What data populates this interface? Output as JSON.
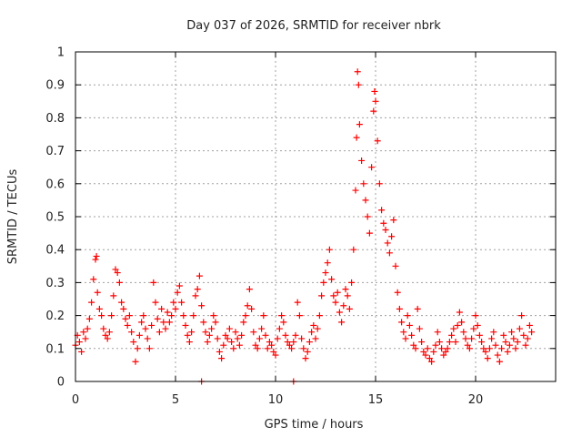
{
  "chart_data": {
    "type": "scatter",
    "title": "Day 037 of 2026, SRMTID for receiver nbrk",
    "xlabel": "GPS time / hours",
    "ylabel": "SRMTID / TECUs",
    "xlim": [
      0,
      24
    ],
    "ylim": [
      0,
      1
    ],
    "x_ticks": [
      0,
      5,
      10,
      15,
      20
    ],
    "x_tick_labels": [
      "0",
      "5",
      "10",
      "15",
      "20"
    ],
    "y_ticks": [
      0,
      0.1,
      0.2,
      0.3,
      0.4,
      0.5,
      0.6,
      0.7,
      0.8,
      0.9,
      1
    ],
    "y_tick_labels": [
      "0",
      "0.1",
      "0.2",
      "0.3",
      "0.4",
      "0.5",
      "0.6",
      "0.7",
      "0.8",
      "0.9",
      "1"
    ],
    "grid": true,
    "marker": "+",
    "marker_color": "#ff0000",
    "series": [
      {
        "name": "SRMTID",
        "points": [
          [
            0.0,
            0.11
          ],
          [
            0.1,
            0.14
          ],
          [
            0.2,
            0.12
          ],
          [
            0.3,
            0.09
          ],
          [
            0.4,
            0.15
          ],
          [
            0.5,
            0.13
          ],
          [
            0.6,
            0.16
          ],
          [
            0.7,
            0.19
          ],
          [
            0.8,
            0.24
          ],
          [
            0.9,
            0.31
          ],
          [
            1.0,
            0.37
          ],
          [
            1.05,
            0.38
          ],
          [
            1.1,
            0.27
          ],
          [
            1.2,
            0.22
          ],
          [
            1.3,
            0.2
          ],
          [
            1.4,
            0.16
          ],
          [
            1.5,
            0.14
          ],
          [
            1.6,
            0.13
          ],
          [
            1.7,
            0.15
          ],
          [
            1.8,
            0.2
          ],
          [
            1.9,
            0.26
          ],
          [
            2.0,
            0.34
          ],
          [
            2.1,
            0.33
          ],
          [
            2.2,
            0.3
          ],
          [
            2.3,
            0.24
          ],
          [
            2.4,
            0.22
          ],
          [
            2.5,
            0.19
          ],
          [
            2.6,
            0.17
          ],
          [
            2.7,
            0.2
          ],
          [
            2.8,
            0.15
          ],
          [
            2.9,
            0.12
          ],
          [
            3.0,
            0.06
          ],
          [
            3.1,
            0.1
          ],
          [
            3.2,
            0.14
          ],
          [
            3.3,
            0.18
          ],
          [
            3.4,
            0.2
          ],
          [
            3.5,
            0.16
          ],
          [
            3.6,
            0.13
          ],
          [
            3.7,
            0.1
          ],
          [
            3.8,
            0.17
          ],
          [
            3.9,
            0.3
          ],
          [
            4.0,
            0.24
          ],
          [
            4.1,
            0.19
          ],
          [
            4.2,
            0.15
          ],
          [
            4.3,
            0.22
          ],
          [
            4.4,
            0.18
          ],
          [
            4.5,
            0.16
          ],
          [
            4.6,
            0.21
          ],
          [
            4.7,
            0.18
          ],
          [
            4.8,
            0.2
          ],
          [
            4.9,
            0.24
          ],
          [
            5.0,
            0.22
          ],
          [
            5.1,
            0.27
          ],
          [
            5.2,
            0.29
          ],
          [
            5.3,
            0.24
          ],
          [
            5.4,
            0.2
          ],
          [
            5.5,
            0.17
          ],
          [
            5.6,
            0.14
          ],
          [
            5.7,
            0.12
          ],
          [
            5.8,
            0.15
          ],
          [
            5.9,
            0.2
          ],
          [
            6.0,
            0.26
          ],
          [
            6.1,
            0.28
          ],
          [
            6.2,
            0.32
          ],
          [
            6.3,
            0.23
          ],
          [
            6.4,
            0.18
          ],
          [
            6.5,
            0.15
          ],
          [
            6.6,
            0.12
          ],
          [
            6.7,
            0.14
          ],
          [
            6.8,
            0.16
          ],
          [
            6.9,
            0.2
          ],
          [
            7.0,
            0.18
          ],
          [
            7.1,
            0.13
          ],
          [
            7.2,
            0.09
          ],
          [
            7.3,
            0.07
          ],
          [
            7.4,
            0.11
          ],
          [
            7.5,
            0.14
          ],
          [
            7.6,
            0.13
          ],
          [
            7.7,
            0.16
          ],
          [
            7.8,
            0.12
          ],
          [
            7.9,
            0.1
          ],
          [
            8.0,
            0.15
          ],
          [
            8.1,
            0.13
          ],
          [
            8.2,
            0.11
          ],
          [
            8.3,
            0.14
          ],
          [
            8.4,
            0.18
          ],
          [
            8.5,
            0.2
          ],
          [
            8.6,
            0.23
          ],
          [
            8.7,
            0.28
          ],
          [
            8.8,
            0.22
          ],
          [
            8.9,
            0.15
          ],
          [
            9.0,
            0.11
          ],
          [
            9.1,
            0.1
          ],
          [
            9.2,
            0.13
          ],
          [
            9.3,
            0.16
          ],
          [
            9.4,
            0.2
          ],
          [
            9.5,
            0.14
          ],
          [
            9.6,
            0.1
          ],
          [
            9.7,
            0.12
          ],
          [
            9.8,
            0.11
          ],
          [
            9.9,
            0.09
          ],
          [
            10.0,
            0.08
          ],
          [
            10.1,
            0.13
          ],
          [
            10.2,
            0.16
          ],
          [
            10.3,
            0.2
          ],
          [
            10.4,
            0.18
          ],
          [
            10.5,
            0.14
          ],
          [
            10.6,
            0.12
          ],
          [
            10.7,
            0.11
          ],
          [
            10.8,
            0.1
          ],
          [
            10.9,
            0.12
          ],
          [
            11.0,
            0.14
          ],
          [
            11.1,
            0.24
          ],
          [
            11.2,
            0.2
          ],
          [
            11.3,
            0.13
          ],
          [
            11.4,
            0.1
          ],
          [
            11.5,
            0.07
          ],
          [
            11.6,
            0.09
          ],
          [
            11.7,
            0.12
          ],
          [
            11.8,
            0.15
          ],
          [
            11.9,
            0.17
          ],
          [
            12.0,
            0.13
          ],
          [
            12.1,
            0.16
          ],
          [
            12.2,
            0.2
          ],
          [
            12.3,
            0.26
          ],
          [
            12.4,
            0.3
          ],
          [
            12.5,
            0.33
          ],
          [
            12.6,
            0.36
          ],
          [
            12.7,
            0.4
          ],
          [
            12.8,
            0.31
          ],
          [
            12.9,
            0.26
          ],
          [
            13.0,
            0.24
          ],
          [
            13.1,
            0.27
          ],
          [
            13.2,
            0.21
          ],
          [
            13.3,
            0.18
          ],
          [
            13.4,
            0.23
          ],
          [
            13.5,
            0.28
          ],
          [
            13.6,
            0.26
          ],
          [
            13.7,
            0.22
          ],
          [
            13.8,
            0.3
          ],
          [
            13.9,
            0.4
          ],
          [
            14.0,
            0.58
          ],
          [
            14.05,
            0.74
          ],
          [
            14.1,
            0.94
          ],
          [
            14.15,
            0.9
          ],
          [
            14.2,
            0.78
          ],
          [
            14.3,
            0.67
          ],
          [
            14.4,
            0.6
          ],
          [
            14.5,
            0.55
          ],
          [
            14.6,
            0.5
          ],
          [
            14.7,
            0.45
          ],
          [
            14.8,
            0.65
          ],
          [
            14.9,
            0.82
          ],
          [
            14.95,
            0.88
          ],
          [
            15.0,
            0.85
          ],
          [
            15.1,
            0.73
          ],
          [
            15.2,
            0.6
          ],
          [
            15.3,
            0.52
          ],
          [
            15.4,
            0.48
          ],
          [
            15.5,
            0.46
          ],
          [
            15.6,
            0.42
          ],
          [
            15.7,
            0.39
          ],
          [
            15.8,
            0.44
          ],
          [
            15.9,
            0.49
          ],
          [
            16.0,
            0.35
          ],
          [
            16.1,
            0.27
          ],
          [
            16.2,
            0.22
          ],
          [
            16.3,
            0.18
          ],
          [
            16.4,
            0.15
          ],
          [
            16.5,
            0.13
          ],
          [
            16.6,
            0.2
          ],
          [
            16.7,
            0.17
          ],
          [
            16.8,
            0.14
          ],
          [
            16.9,
            0.11
          ],
          [
            17.0,
            0.1
          ],
          [
            17.1,
            0.22
          ],
          [
            17.2,
            0.16
          ],
          [
            17.3,
            0.12
          ],
          [
            17.4,
            0.09
          ],
          [
            17.5,
            0.08
          ],
          [
            17.6,
            0.1
          ],
          [
            17.7,
            0.07
          ],
          [
            17.8,
            0.06
          ],
          [
            17.9,
            0.09
          ],
          [
            18.0,
            0.11
          ],
          [
            18.1,
            0.15
          ],
          [
            18.2,
            0.12
          ],
          [
            18.3,
            0.1
          ],
          [
            18.4,
            0.08
          ],
          [
            18.5,
            0.09
          ],
          [
            18.6,
            0.1
          ],
          [
            18.7,
            0.12
          ],
          [
            18.8,
            0.14
          ],
          [
            18.9,
            0.16
          ],
          [
            19.0,
            0.12
          ],
          [
            19.1,
            0.17
          ],
          [
            19.2,
            0.21
          ],
          [
            19.3,
            0.18
          ],
          [
            19.4,
            0.15
          ],
          [
            19.5,
            0.13
          ],
          [
            19.6,
            0.11
          ],
          [
            19.7,
            0.1
          ],
          [
            19.8,
            0.13
          ],
          [
            19.9,
            0.16
          ],
          [
            20.0,
            0.2
          ],
          [
            20.1,
            0.17
          ],
          [
            20.2,
            0.14
          ],
          [
            20.3,
            0.12
          ],
          [
            20.4,
            0.1
          ],
          [
            20.5,
            0.09
          ],
          [
            20.6,
            0.07
          ],
          [
            20.7,
            0.1
          ],
          [
            20.8,
            0.13
          ],
          [
            20.9,
            0.15
          ],
          [
            21.0,
            0.11
          ],
          [
            21.1,
            0.08
          ],
          [
            21.2,
            0.06
          ],
          [
            21.3,
            0.1
          ],
          [
            21.4,
            0.14
          ],
          [
            21.5,
            0.12
          ],
          [
            21.6,
            0.09
          ],
          [
            21.7,
            0.11
          ],
          [
            21.8,
            0.15
          ],
          [
            21.9,
            0.13
          ],
          [
            22.0,
            0.1
          ],
          [
            22.1,
            0.12
          ],
          [
            22.2,
            0.16
          ],
          [
            22.3,
            0.2
          ],
          [
            22.4,
            0.14
          ],
          [
            22.5,
            0.11
          ],
          [
            22.6,
            0.13
          ],
          [
            22.7,
            0.17
          ],
          [
            22.8,
            0.15
          ],
          [
            6.3,
            0.0
          ],
          [
            10.9,
            0.0
          ]
        ]
      }
    ]
  }
}
